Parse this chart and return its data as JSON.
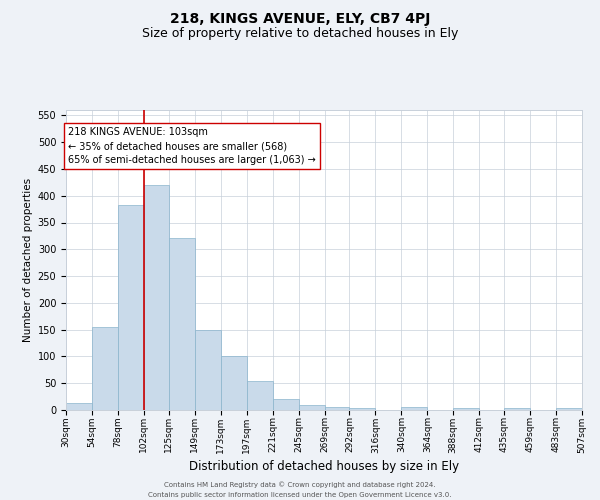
{
  "title": "218, KINGS AVENUE, ELY, CB7 4PJ",
  "subtitle": "Size of property relative to detached houses in Ely",
  "xlabel": "Distribution of detached houses by size in Ely",
  "ylabel": "Number of detached properties",
  "footer_line1": "Contains HM Land Registry data © Crown copyright and database right 2024.",
  "footer_line2": "Contains public sector information licensed under the Open Government Licence v3.0.",
  "property_label": "218 KINGS AVENUE: 103sqm",
  "annotation_line1": "← 35% of detached houses are smaller (568)",
  "annotation_line2": "65% of semi-detached houses are larger (1,063) →",
  "bar_color": "#c9daea",
  "bar_edge_color": "#8ab4cc",
  "vline_color": "#cc0000",
  "vline_x": 102,
  "annotation_box_color": "#ffffff",
  "annotation_box_edge": "#cc0000",
  "bins": [
    30,
    54,
    78,
    102,
    125,
    149,
    173,
    197,
    221,
    245,
    269,
    292,
    316,
    340,
    364,
    388,
    412,
    435,
    459,
    483,
    507
  ],
  "bin_labels": [
    "30sqm",
    "54sqm",
    "78sqm",
    "102sqm",
    "125sqm",
    "149sqm",
    "173sqm",
    "197sqm",
    "221sqm",
    "245sqm",
    "269sqm",
    "292sqm",
    "316sqm",
    "340sqm",
    "364sqm",
    "388sqm",
    "412sqm",
    "435sqm",
    "459sqm",
    "483sqm",
    "507sqm"
  ],
  "counts": [
    13,
    155,
    383,
    420,
    322,
    150,
    100,
    55,
    20,
    10,
    5,
    3,
    0,
    5,
    0,
    3,
    0,
    3,
    0,
    3
  ],
  "ylim": [
    0,
    560
  ],
  "yticks": [
    0,
    50,
    100,
    150,
    200,
    250,
    300,
    350,
    400,
    450,
    500,
    550
  ],
  "bg_color": "#eef2f7",
  "plot_bg": "#ffffff",
  "grid_color": "#c8d0da",
  "title_fontsize": 10,
  "subtitle_fontsize": 9,
  "ylabel_fontsize": 7.5,
  "xlabel_fontsize": 8.5,
  "tick_fontsize": 6.5,
  "ytick_fontsize": 7,
  "annotation_fontsize": 7,
  "footer_fontsize": 5
}
